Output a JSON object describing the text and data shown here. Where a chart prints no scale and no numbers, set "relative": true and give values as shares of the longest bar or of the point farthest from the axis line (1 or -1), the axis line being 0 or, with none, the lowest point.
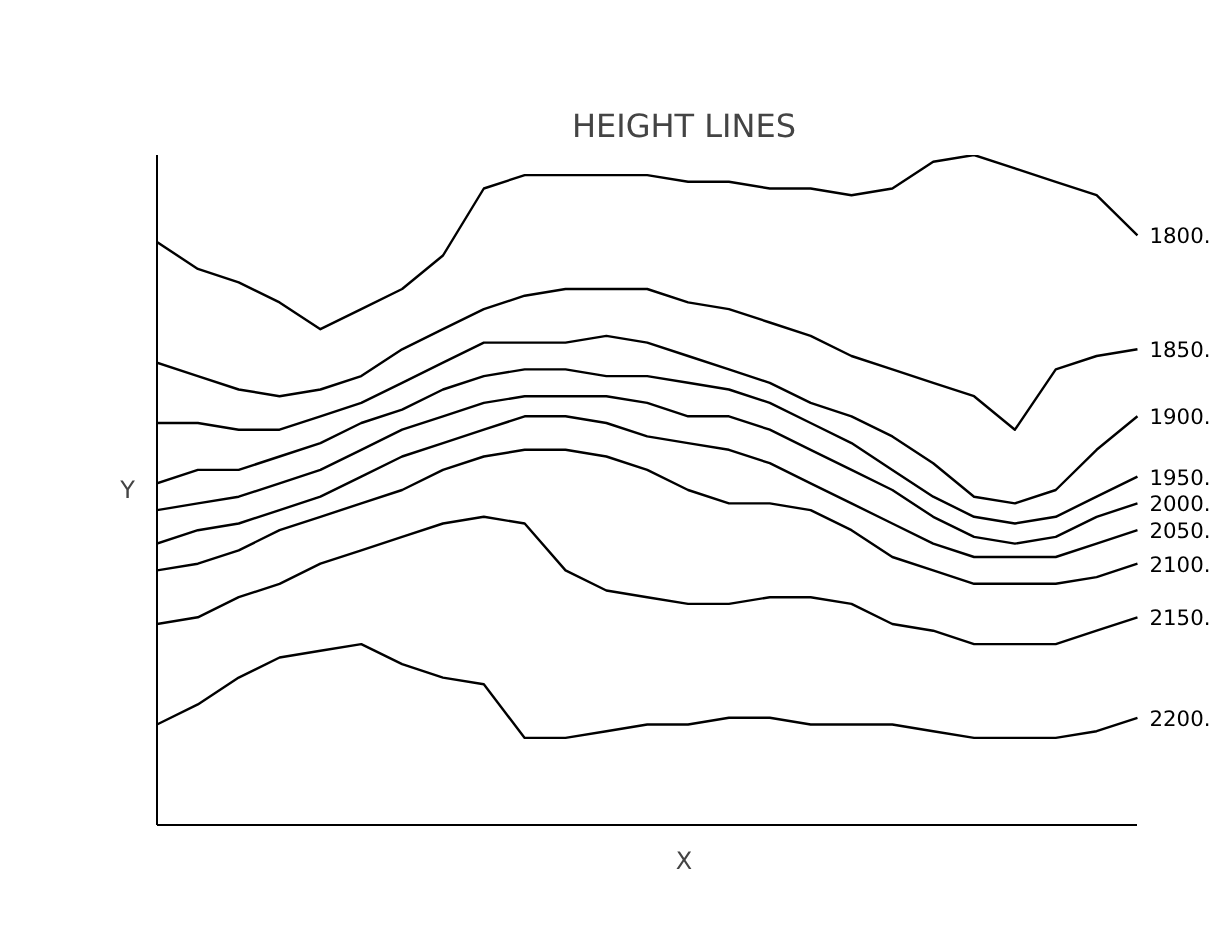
{
  "chart_data": {
    "type": "line",
    "title": "HEIGHT LINES",
    "xlabel": "X",
    "ylabel": "Y",
    "relative": true,
    "grid": false,
    "tick_labels": false,
    "marker": "none",
    "line_style": "solid",
    "categories": [
      null,
      null,
      null,
      null,
      null,
      null,
      null,
      null,
      null,
      null,
      null,
      null,
      null,
      null,
      null,
      null,
      null,
      null,
      null,
      null,
      null,
      null,
      null,
      null,
      null
    ],
    "series": [
      {
        "name": "1800.",
        "color": "#000000",
        "values": [
          0.87,
          0.83,
          0.81,
          0.78,
          0.74,
          0.77,
          0.8,
          0.85,
          0.95,
          0.97,
          0.97,
          0.97,
          0.97,
          0.96,
          0.96,
          0.95,
          0.95,
          0.94,
          0.95,
          0.99,
          1.0,
          0.98,
          0.96,
          0.94,
          0.88
        ]
      },
      {
        "name": "1850.",
        "color": "#000000",
        "values": [
          0.69,
          0.67,
          0.65,
          0.64,
          0.65,
          0.67,
          0.71,
          0.74,
          0.77,
          0.79,
          0.8,
          0.8,
          0.8,
          0.78,
          0.77,
          0.75,
          0.73,
          0.7,
          0.68,
          0.66,
          0.64,
          0.59,
          0.68,
          0.7,
          0.71
        ]
      },
      {
        "name": "1900.",
        "color": "#000000",
        "values": [
          0.6,
          0.6,
          0.59,
          0.59,
          0.61,
          0.63,
          0.66,
          0.69,
          0.72,
          0.72,
          0.72,
          0.73,
          0.72,
          0.7,
          0.68,
          0.66,
          0.63,
          0.61,
          0.58,
          0.54,
          0.49,
          0.48,
          0.5,
          0.56,
          0.61
        ]
      },
      {
        "name": "1950.",
        "color": "#000000",
        "values": [
          0.51,
          0.53,
          0.53,
          0.55,
          0.57,
          0.6,
          0.62,
          0.65,
          0.67,
          0.68,
          0.68,
          0.67,
          0.67,
          0.66,
          0.65,
          0.63,
          0.6,
          0.57,
          0.53,
          0.49,
          0.46,
          0.45,
          0.46,
          0.49,
          0.52
        ]
      },
      {
        "name": "2000.",
        "color": "#000000",
        "values": [
          0.47,
          0.48,
          0.49,
          0.51,
          0.53,
          0.56,
          0.59,
          0.61,
          0.63,
          0.64,
          0.64,
          0.64,
          0.63,
          0.61,
          0.61,
          0.59,
          0.56,
          0.53,
          0.5,
          0.46,
          0.43,
          0.42,
          0.43,
          0.46,
          0.48
        ]
      },
      {
        "name": "2050.",
        "color": "#000000",
        "values": [
          0.42,
          0.44,
          0.45,
          0.47,
          0.49,
          0.52,
          0.55,
          0.57,
          0.59,
          0.61,
          0.61,
          0.6,
          0.58,
          0.57,
          0.56,
          0.54,
          0.51,
          0.48,
          0.45,
          0.42,
          0.4,
          0.4,
          0.4,
          0.42,
          0.44
        ]
      },
      {
        "name": "2100.",
        "color": "#000000",
        "values": [
          0.38,
          0.39,
          0.41,
          0.44,
          0.46,
          0.48,
          0.5,
          0.53,
          0.55,
          0.56,
          0.56,
          0.55,
          0.53,
          0.5,
          0.48,
          0.48,
          0.47,
          0.44,
          0.4,
          0.38,
          0.36,
          0.36,
          0.36,
          0.37,
          0.39
        ]
      },
      {
        "name": "2150.",
        "color": "#000000",
        "values": [
          0.3,
          0.31,
          0.34,
          0.36,
          0.39,
          0.41,
          0.43,
          0.45,
          0.46,
          0.45,
          0.38,
          0.35,
          0.34,
          0.33,
          0.33,
          0.34,
          0.34,
          0.33,
          0.3,
          0.29,
          0.27,
          0.27,
          0.27,
          0.29,
          0.31
        ]
      },
      {
        "name": "2200.",
        "color": "#000000",
        "values": [
          0.15,
          0.18,
          0.22,
          0.25,
          0.26,
          0.27,
          0.24,
          0.22,
          0.21,
          0.13,
          0.13,
          0.14,
          0.15,
          0.15,
          0.16,
          0.16,
          0.15,
          0.15,
          0.15,
          0.14,
          0.13,
          0.13,
          0.13,
          0.14,
          0.16
        ]
      }
    ]
  }
}
